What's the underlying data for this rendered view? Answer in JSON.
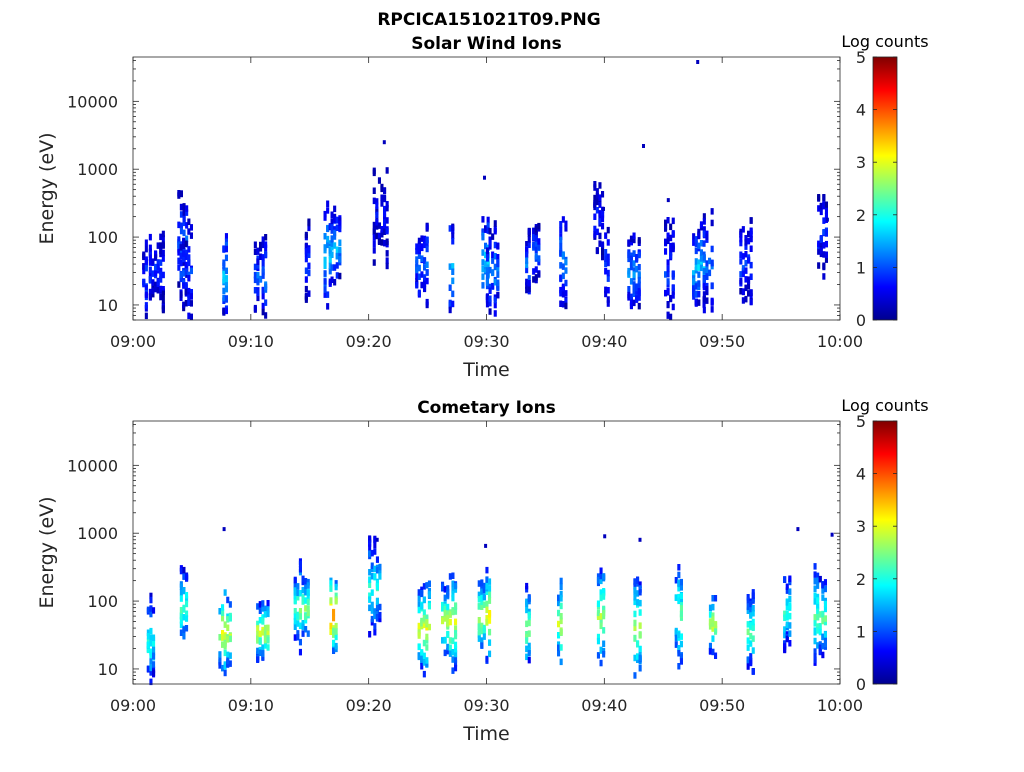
{
  "figure": {
    "title": "RPCICA151021T09.PNG"
  },
  "chart_data": [
    {
      "type": "heatmap",
      "title": "Solar Wind Ions",
      "xlabel": "Time",
      "ylabel": "Energy (eV)",
      "x_ticks": [
        "09:00",
        "09:10",
        "09:20",
        "09:30",
        "09:40",
        "09:50",
        "10:00"
      ],
      "x_range_minutes": [
        0,
        60
      ],
      "y_scale": "log",
      "y_ticks": [
        "10",
        "100",
        "1000",
        "10000"
      ],
      "y_range": [
        6,
        45000
      ],
      "colorbar": {
        "label": "Log counts",
        "ticks": [
          "0",
          "1",
          "2",
          "3",
          "4",
          "5"
        ],
        "range": [
          0,
          5
        ],
        "colormap": "jet"
      },
      "clusters": [
        [
          1,
          22,
          0.9
        ],
        [
          2,
          35,
          0.8
        ],
        [
          4.2,
          100,
          1.0
        ],
        [
          4.5,
          30,
          0.9
        ],
        [
          7.8,
          25,
          1.6
        ],
        [
          10.8,
          25,
          1.2
        ],
        [
          14.8,
          40,
          0.9
        ],
        [
          16.5,
          55,
          1.7
        ],
        [
          17.2,
          70,
          1.5
        ],
        [
          21,
          200,
          0.6
        ],
        [
          24.5,
          40,
          1.1
        ],
        [
          27,
          35,
          1.5
        ],
        [
          29.9,
          50,
          1.6
        ],
        [
          30.5,
          30,
          1.3
        ],
        [
          33.5,
          40,
          1.2
        ],
        [
          34.2,
          60,
          1.1
        ],
        [
          36.5,
          45,
          1.3
        ],
        [
          39.5,
          200,
          0.7
        ],
        [
          40.2,
          40,
          0.9
        ],
        [
          42.5,
          30,
          1.3
        ],
        [
          45.5,
          35,
          0.9
        ],
        [
          48,
          35,
          1.6
        ],
        [
          48.8,
          40,
          1.1
        ],
        [
          52,
          40,
          0.9
        ],
        [
          58.5,
          120,
          0.8
        ]
      ],
      "sparse_points": [
        [
          21.2,
          2500
        ],
        [
          29.7,
          750
        ],
        [
          43.2,
          2200
        ],
        [
          45.3,
          350
        ],
        [
          47.8,
          38000
        ],
        [
          39.8,
          260
        ],
        [
          58.8,
          180
        ]
      ]
    },
    {
      "type": "heatmap",
      "title": "Cometary Ions",
      "xlabel": "Time",
      "ylabel": "Energy (eV)",
      "x_ticks": [
        "09:00",
        "09:10",
        "09:20",
        "09:30",
        "09:40",
        "09:50",
        "10:00"
      ],
      "x_range_minutes": [
        0,
        60
      ],
      "y_scale": "log",
      "y_ticks": [
        "10",
        "100",
        "1000",
        "10000"
      ],
      "y_range": [
        6,
        45000
      ],
      "colorbar": {
        "label": "Log counts",
        "ticks": [
          "0",
          "1",
          "2",
          "3",
          "4",
          "5"
        ],
        "range": [
          0,
          5
        ],
        "colormap": "jet"
      },
      "clusters": [
        [
          1.5,
          25,
          2.0
        ],
        [
          4.3,
          80,
          2.3
        ],
        [
          7.8,
          35,
          3.0
        ],
        [
          11,
          35,
          2.9
        ],
        [
          14.3,
          80,
          2.6
        ],
        [
          17,
          60,
          3.7
        ],
        [
          20.5,
          150,
          2.1
        ],
        [
          24.7,
          40,
          3.0
        ],
        [
          26.8,
          50,
          2.9
        ],
        [
          29.8,
          60,
          3.1
        ],
        [
          33.5,
          40,
          2.7
        ],
        [
          36.2,
          45,
          2.8
        ],
        [
          39.7,
          60,
          2.7
        ],
        [
          42.8,
          40,
          2.8
        ],
        [
          46.3,
          60,
          2.5
        ],
        [
          49.2,
          45,
          2.9
        ],
        [
          52.4,
          35,
          2.3
        ],
        [
          55.5,
          70,
          2.2
        ],
        [
          58.3,
          60,
          2.4
        ]
      ],
      "sparse_points": [
        [
          7.6,
          1150
        ],
        [
          20.6,
          800
        ],
        [
          29.8,
          650
        ],
        [
          39.9,
          900
        ],
        [
          42.9,
          800
        ],
        [
          56.3,
          1150
        ],
        [
          59.2,
          950
        ]
      ]
    }
  ]
}
